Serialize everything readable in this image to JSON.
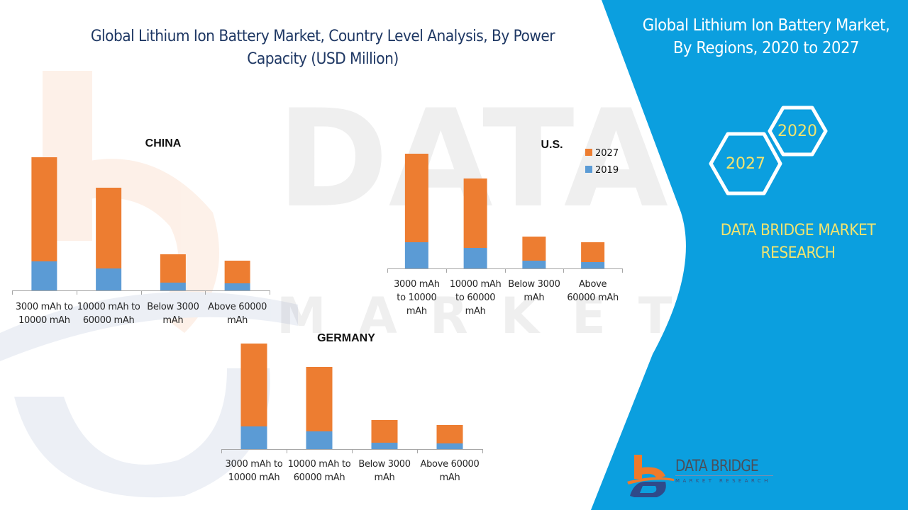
{
  "header": {
    "title": "Global Lithium Ion Battery Market, Country Level Analysis, By Power Capacity (USD Million)"
  },
  "side_panel": {
    "title": "Global Lithium Ion Battery Market, By Regions, 2020 to 2027",
    "hex_labels": [
      "2020",
      "2027"
    ],
    "brand_text": "DATA BRIDGE MARKET RESEARCH",
    "logo_name": "DATA BRIDGE",
    "logo_sub": "MARKET RESEARCH",
    "colors": {
      "panel": "#0b9fdf",
      "accent_text": "#f2e46f"
    }
  },
  "legend": {
    "items": [
      {
        "label": "2027",
        "color": "#ed7d31"
      },
      {
        "label": "2019",
        "color": "#5b9bd5"
      }
    ]
  },
  "chart_data": [
    {
      "type": "bar",
      "stacked": true,
      "title": "CHINA",
      "xlabel": "",
      "ylabel": "",
      "grid": false,
      "categories": [
        "3000 mAh to 10000 mAh",
        "10000 mAh to 60000 mAh",
        "Below 3000 mAh",
        "Above 60000 mAh"
      ],
      "category_lines": [
        [
          "3000 mAh to",
          "10000 mAh"
        ],
        [
          "10000 mAh to",
          "60000 mAh"
        ],
        [
          "Below 3000",
          "mAh"
        ],
        [
          "Above 60000",
          "mAh"
        ]
      ],
      "series": [
        {
          "name": "2019",
          "values": [
            41,
            31,
            11,
            10
          ]
        },
        {
          "name": "2027",
          "values": [
            147,
            114,
            40,
            32
          ]
        }
      ],
      "ylim": [
        0,
        190
      ],
      "note": "relative values estimated from bar heights; no y-axis shown"
    },
    {
      "type": "bar",
      "stacked": true,
      "title": "U.S.",
      "xlabel": "",
      "ylabel": "",
      "grid": false,
      "categories": [
        "3000 mAh to 10000 mAh",
        "10000 mAh to 60000 mAh",
        "Below 3000 mAh",
        "Above 60000 mAh"
      ],
      "category_lines": [
        [
          "3000 mAh",
          "to 10000",
          "mAh"
        ],
        [
          "10000 mAh",
          "to 60000",
          "mAh"
        ],
        [
          "Below 3000",
          "mAh"
        ],
        [
          "Above",
          "60000 mAh"
        ]
      ],
      "series": [
        {
          "name": "2019",
          "values": [
            37,
            29,
            11,
            9
          ]
        },
        {
          "name": "2027",
          "values": [
            125,
            98,
            34,
            28
          ]
        }
      ],
      "ylim": [
        0,
        190
      ],
      "legend_position": "top-right"
    },
    {
      "type": "bar",
      "stacked": true,
      "title": "GERMANY",
      "xlabel": "",
      "ylabel": "",
      "grid": false,
      "categories": [
        "3000 mAh to 10000 mAh",
        "10000 mAh to 60000 mAh",
        "Below 3000 mAh",
        "Above 60000 mAh"
      ],
      "category_lines": [
        [
          "3000 mAh to",
          "10000 mAh"
        ],
        [
          "10000 mAh to",
          "60000 mAh"
        ],
        [
          "Below 3000",
          "mAh"
        ],
        [
          "Above 60000",
          "mAh"
        ]
      ],
      "series": [
        {
          "name": "2019",
          "values": [
            32,
            25,
            9,
            8
          ]
        },
        {
          "name": "2027",
          "values": [
            117,
            91,
            32,
            26
          ]
        }
      ],
      "ylim": [
        0,
        190
      ]
    }
  ]
}
